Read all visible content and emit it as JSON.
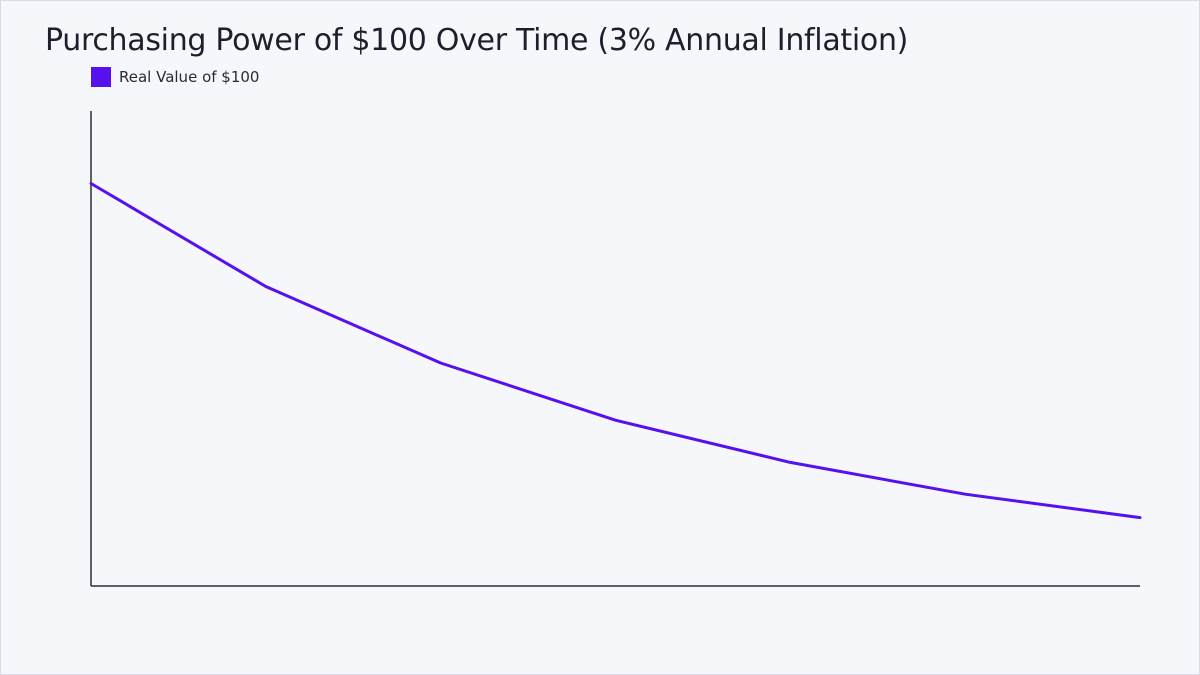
{
  "colors": {
    "background": "#f6f7fb",
    "axis": "#2b2b33",
    "series": "#5511ee"
  },
  "chart_data": {
    "type": "line",
    "title": "Purchasing Power of $100 Over Time (3% Annual Inflation)",
    "xlabel": "",
    "ylabel": "",
    "x": [
      0,
      10,
      20,
      30,
      40,
      50,
      60
    ],
    "xlim": [
      0,
      60
    ],
    "ylim": [
      0,
      118
    ],
    "grid": false,
    "legend": "top-left",
    "series": [
      {
        "name": "Real Value of $100",
        "values": [
          100,
          74.4,
          55.4,
          41.2,
          30.7,
          22.8,
          17.0
        ]
      }
    ]
  }
}
